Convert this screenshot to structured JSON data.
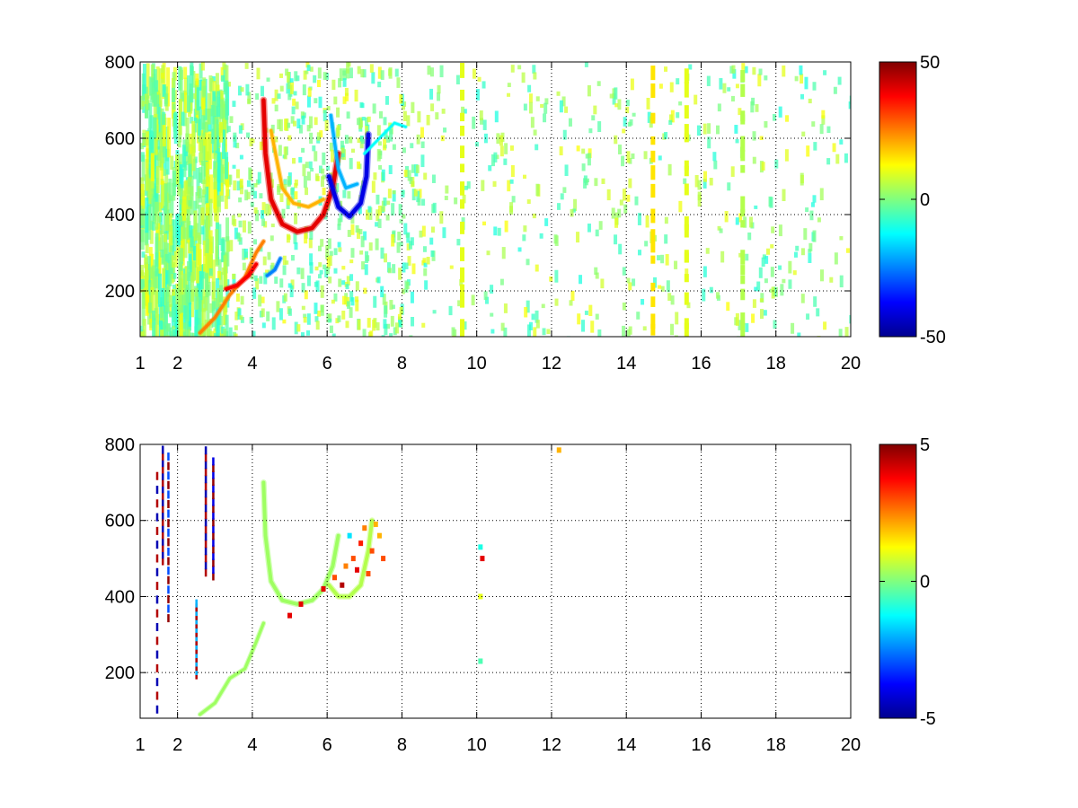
{
  "chart_data": [
    {
      "type": "heatmap",
      "title": "",
      "xlabel": "",
      "ylabel": "",
      "x_scale": "linear",
      "xlim": [
        1,
        20
      ],
      "ylim": [
        80,
        800
      ],
      "x_ticks": [
        1,
        2,
        4,
        6,
        8,
        10,
        12,
        14,
        16,
        18,
        20
      ],
      "x_tick_labels": [
        "1",
        "2",
        "4",
        "6",
        "8",
        "10",
        "12",
        "14",
        "16",
        "18",
        "20"
      ],
      "y_ticks": [
        200,
        400,
        600,
        800
      ],
      "y_tick_labels": [
        "200",
        "400",
        "600",
        "800"
      ],
      "grid": "dotted",
      "colormap": "jet",
      "clim": [
        -50,
        50
      ],
      "colorbar_ticks": [
        -50,
        0,
        50
      ],
      "colorbar_tick_labels": [
        "-50",
        "0",
        "50"
      ],
      "features": [
        {
          "kind": "curve",
          "points": [
            [
              2.6,
              90
            ],
            [
              3.0,
              130
            ],
            [
              3.4,
              190
            ],
            [
              3.8,
              235
            ],
            [
              4.1,
              300
            ],
            [
              4.3,
              330
            ]
          ],
          "value": 25,
          "width": 2.5
        },
        {
          "kind": "curve",
          "points": [
            [
              3.3,
              205
            ],
            [
              3.6,
              215
            ],
            [
              3.9,
              240
            ],
            [
              4.1,
              270
            ]
          ],
          "value": 38,
          "width": 3
        },
        {
          "kind": "curve",
          "points": [
            [
              4.3,
              700
            ],
            [
              4.35,
              560
            ],
            [
              4.5,
              440
            ],
            [
              4.8,
              375
            ],
            [
              5.2,
              355
            ],
            [
              5.6,
              365
            ],
            [
              5.9,
              400
            ],
            [
              6.15,
              470
            ],
            [
              6.3,
              560
            ]
          ],
          "value": 40,
          "width": 3.5
        },
        {
          "kind": "curve",
          "points": [
            [
              4.5,
              620
            ],
            [
              4.8,
              470
            ],
            [
              5.1,
              430
            ],
            [
              5.5,
              420
            ],
            [
              5.9,
              440
            ]
          ],
          "value": 20,
          "width": 2.5
        },
        {
          "kind": "curve",
          "points": [
            [
              6.05,
              500
            ],
            [
              6.3,
              420
            ],
            [
              6.6,
              395
            ],
            [
              6.9,
              430
            ],
            [
              7.05,
              500
            ],
            [
              7.1,
              610
            ]
          ],
          "value": -40,
          "width": 3.5
        },
        {
          "kind": "curve",
          "points": [
            [
              6.1,
              660
            ],
            [
              6.3,
              520
            ],
            [
              6.5,
              470
            ],
            [
              6.8,
              480
            ]
          ],
          "value": -20,
          "width": 2.5
        },
        {
          "kind": "curve",
          "points": [
            [
              4.4,
              240
            ],
            [
              4.6,
              255
            ],
            [
              4.75,
              285
            ]
          ],
          "value": -25,
          "width": 2.5
        },
        {
          "kind": "curve",
          "points": [
            [
              7.0,
              560
            ],
            [
              7.4,
              600
            ],
            [
              7.8,
              640
            ],
            [
              8.1,
              630
            ]
          ],
          "value": -12,
          "width": 2
        },
        {
          "kind": "vstripe",
          "x": 9.6,
          "y": [
            80,
            800
          ],
          "value": 10
        },
        {
          "kind": "vstripe",
          "x": 15.6,
          "y": [
            80,
            800
          ],
          "value": 10
        },
        {
          "kind": "vstripe",
          "x": 14.7,
          "y": [
            80,
            800
          ],
          "value": 15
        },
        {
          "kind": "vstripe",
          "x": 17.1,
          "y": [
            80,
            800
          ],
          "value": 5
        }
      ]
    },
    {
      "type": "heatmap",
      "title": "",
      "xlabel": "",
      "ylabel": "",
      "x_scale": "linear",
      "xlim": [
        1,
        20
      ],
      "ylim": [
        80,
        800
      ],
      "x_ticks": [
        1,
        2,
        4,
        6,
        8,
        10,
        12,
        14,
        16,
        18,
        20
      ],
      "x_tick_labels": [
        "1",
        "2",
        "4",
        "6",
        "8",
        "10",
        "12",
        "14",
        "16",
        "18",
        "20"
      ],
      "y_ticks": [
        200,
        400,
        600,
        800
      ],
      "y_tick_labels": [
        "200",
        "400",
        "600",
        "800"
      ],
      "grid": "dotted",
      "colormap": "jet",
      "clim": [
        -5,
        5
      ],
      "colorbar_ticks": [
        -5,
        0,
        5
      ],
      "colorbar_tick_labels": [
        "-5",
        "0",
        "5"
      ],
      "features": [
        {
          "kind": "curve",
          "points": [
            [
              2.6,
              90
            ],
            [
              3.0,
              120
            ],
            [
              3.4,
              185
            ],
            [
              3.8,
              210
            ],
            [
              4.1,
              280
            ],
            [
              4.3,
              330
            ]
          ],
          "value": 0.3,
          "width": 2.5
        },
        {
          "kind": "curve",
          "points": [
            [
              4.3,
              700
            ],
            [
              4.35,
              560
            ],
            [
              4.5,
              440
            ],
            [
              4.8,
              390
            ],
            [
              5.2,
              380
            ],
            [
              5.6,
              390
            ],
            [
              5.9,
              420
            ],
            [
              6.15,
              480
            ],
            [
              6.3,
              560
            ]
          ],
          "value": 0.3,
          "width": 3
        },
        {
          "kind": "curve",
          "points": [
            [
              6.05,
              430
            ],
            [
              6.3,
              400
            ],
            [
              6.6,
              400
            ],
            [
              6.9,
              430
            ],
            [
              7.1,
              520
            ],
            [
              7.2,
              600
            ]
          ],
          "value": 0.5,
          "width": 3
        },
        {
          "kind": "scatter",
          "points": [
            [
              6.5,
              480,
              2.5
            ],
            [
              6.7,
              500,
              3
            ],
            [
              6.9,
              540,
              3.5
            ],
            [
              7.0,
              580,
              2.5
            ],
            [
              7.2,
              520,
              3
            ],
            [
              7.4,
              560,
              2
            ],
            [
              7.5,
              500,
              3
            ],
            [
              6.2,
              450,
              3
            ],
            [
              6.4,
              430,
              4.5
            ],
            [
              6.8,
              470,
              4
            ],
            [
              7.1,
              460,
              3
            ],
            [
              6.6,
              560,
              -1.5
            ],
            [
              7.3,
              590,
              2
            ],
            [
              5.9,
              420,
              4
            ],
            [
              5.3,
              380,
              4
            ],
            [
              5.0,
              350,
              4
            ]
          ]
        },
        {
          "kind": "vtrace",
          "x": 1.45,
          "y": [
            90,
            740
          ],
          "values": [
            -4.5,
            4.5
          ]
        },
        {
          "kind": "vtrace",
          "x": 1.6,
          "y": [
            480,
            790
          ],
          "values": [
            4.5,
            -4.5
          ]
        },
        {
          "kind": "vtrace",
          "x": 1.75,
          "y": [
            330,
            780
          ],
          "values": [
            4.8,
            -3
          ]
        },
        {
          "kind": "vtrace",
          "x": 2.5,
          "y": [
            180,
            380
          ],
          "values": [
            4.5,
            -2
          ]
        },
        {
          "kind": "vtrace",
          "x": 2.75,
          "y": [
            450,
            790
          ],
          "values": [
            4.5,
            -4.5
          ]
        },
        {
          "kind": "vtrace",
          "x": 2.95,
          "y": [
            440,
            760
          ],
          "values": [
            4.8,
            -4
          ]
        },
        {
          "kind": "scatter",
          "points": [
            [
              10.1,
              530,
              -1
            ],
            [
              10.15,
              500,
              4
            ],
            [
              10.1,
              400,
              1
            ],
            [
              10.1,
              230,
              -0.5
            ],
            [
              12.2,
              785,
              2
            ]
          ]
        }
      ]
    }
  ]
}
